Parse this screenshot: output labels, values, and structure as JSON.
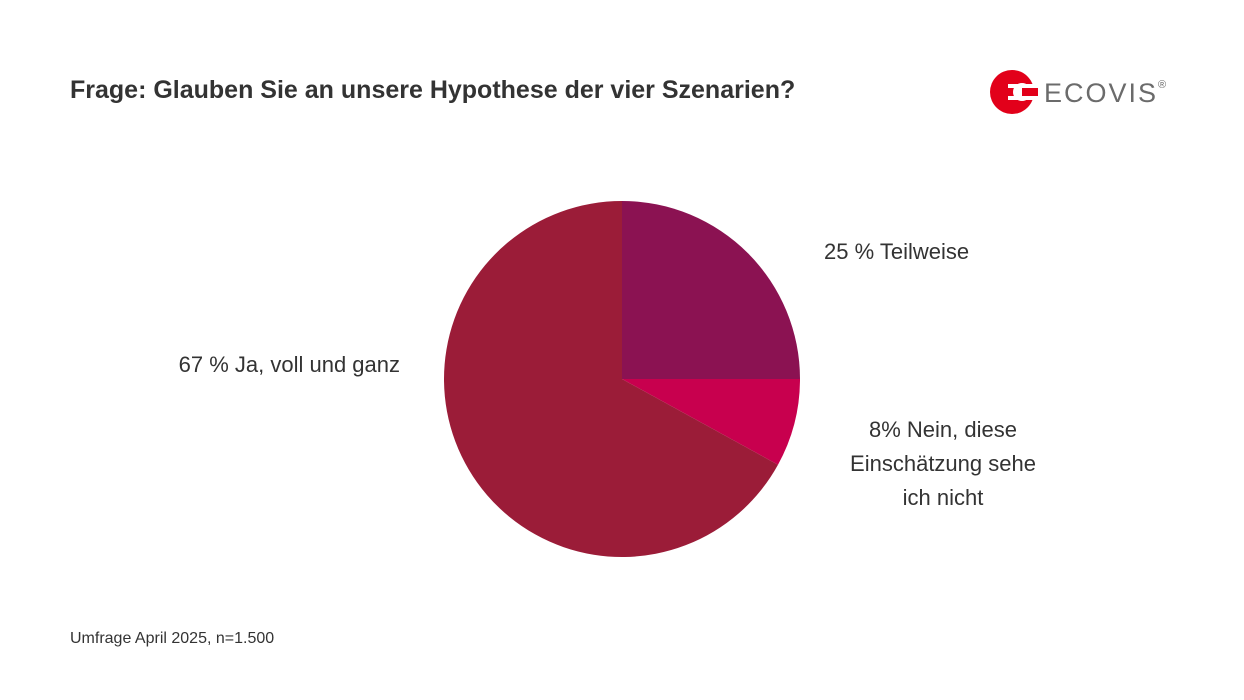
{
  "header": {
    "title": "Frage: Glauben Sie an unsere Hypothese der vier Szenarien?",
    "logo": "ECOVIS",
    "logo_mark": "®"
  },
  "chart_data": {
    "type": "pie",
    "categories": [
      "Teilweise",
      "Nein, diese Einschätzung sehe ich nicht",
      "Ja, voll und ganz"
    ],
    "values": [
      25,
      8,
      67
    ],
    "value_labels": [
      "25 %",
      "8%",
      "67 %"
    ],
    "colors": [
      "#8b1252",
      "#c8004e",
      "#9b1c38"
    ]
  },
  "footer": {
    "note": "Umfrage April 2025, n=1.500"
  }
}
